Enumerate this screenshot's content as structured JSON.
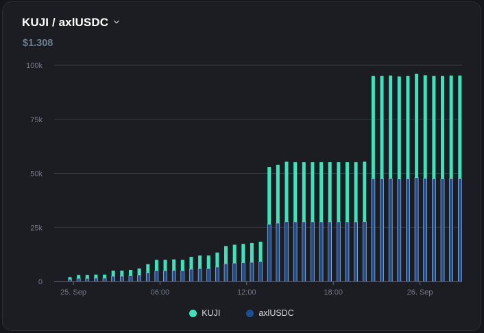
{
  "header": {
    "pair": "KUJI / axlUSDC",
    "price": "$1.308"
  },
  "colors": {
    "kuji": "#3ee2bb",
    "axlusdc": "#1c4e94",
    "grid": "#3a3d45",
    "axis": "#6d717b"
  },
  "icons": {
    "pair_dropdown": "chevron-down-icon",
    "legend_marker": "circle"
  },
  "chart_data": {
    "type": "bar",
    "stacked": true,
    "ylim": [
      0,
      100000
    ],
    "yticks": [
      0,
      25000,
      50000,
      75000,
      100000
    ],
    "ytick_labels": [
      "0",
      "25k",
      "50k",
      "75k",
      "100k"
    ],
    "xticks": [
      {
        "label": "25. Sep",
        "index": 0
      },
      {
        "label": "06:00",
        "index": 10
      },
      {
        "label": "12:00",
        "index": 20
      },
      {
        "label": "18:00",
        "index": 30
      },
      {
        "label": "26. Sep",
        "index": 40
      }
    ],
    "grid": true,
    "legend_position": "bottom-center",
    "series": [
      {
        "name": "KUJI",
        "values": [
          1000,
          1500,
          1500,
          1600,
          1600,
          2500,
          2500,
          2700,
          3000,
          4000,
          5000,
          5000,
          5100,
          5000,
          5700,
          6000,
          6000,
          6700,
          8200,
          8500,
          8700,
          8900,
          9200,
          26500,
          27000,
          27700,
          27600,
          27600,
          27600,
          27600,
          27600,
          27600,
          27600,
          27600,
          27700,
          47500,
          47500,
          47600,
          47400,
          47500,
          48000,
          47700,
          47500,
          47500,
          47600,
          47600
        ]
      },
      {
        "name": "axlUSDC",
        "values": [
          1000,
          1500,
          1500,
          1600,
          1600,
          2500,
          2500,
          2700,
          3000,
          4000,
          5000,
          5000,
          5100,
          5000,
          5700,
          6000,
          6000,
          6700,
          8200,
          8500,
          8700,
          8900,
          9200,
          26500,
          27000,
          27700,
          27600,
          27600,
          27600,
          27600,
          27600,
          27600,
          27600,
          27600,
          27700,
          47500,
          47500,
          47600,
          47400,
          47500,
          48000,
          47700,
          47500,
          47500,
          47600,
          47600
        ]
      }
    ],
    "legend": [
      "KUJI",
      "axlUSDC"
    ]
  }
}
